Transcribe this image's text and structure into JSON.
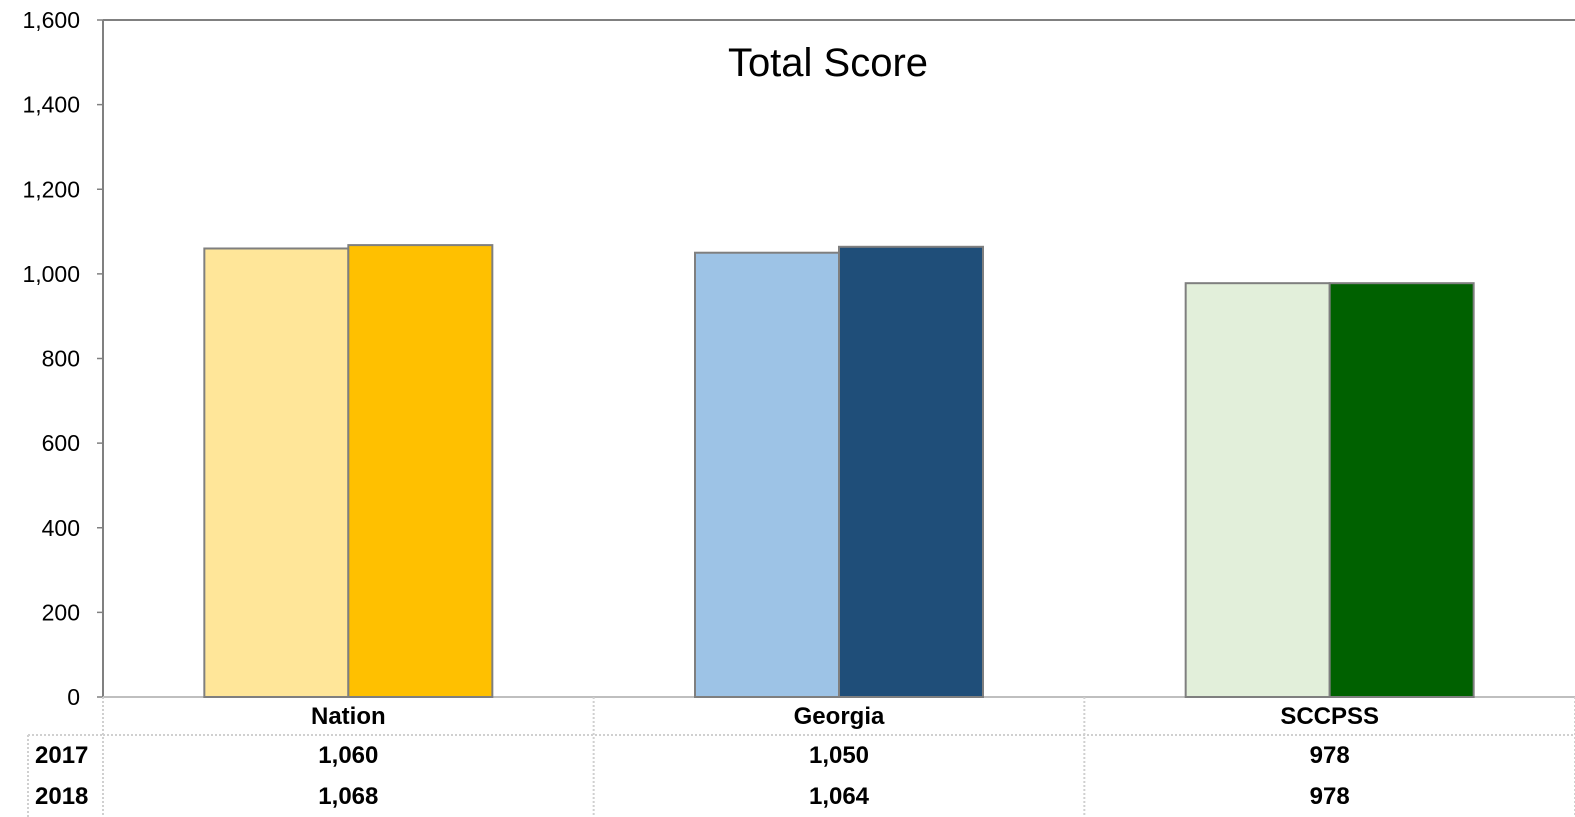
{
  "chart_data": {
    "type": "bar",
    "title": "Total Score",
    "categories": [
      "Nation",
      "Georgia",
      "SCCPSS"
    ],
    "series": [
      {
        "name": "2017",
        "values": [
          1060,
          1050,
          978
        ],
        "labels": [
          "1,060",
          "1,050",
          "978"
        ],
        "colors": [
          "#FFE699",
          "#9DC3E6",
          "#E2EFDA"
        ]
      },
      {
        "name": "2018",
        "values": [
          1068,
          1064,
          978
        ],
        "labels": [
          "1,068",
          "1,064",
          "978"
        ],
        "colors": [
          "#FFC000",
          "#1F4E79",
          "#006100"
        ]
      }
    ],
    "ylim": [
      0,
      1600
    ],
    "yticks": [
      0,
      200,
      400,
      600,
      800,
      1000,
      1200,
      1400,
      1600
    ],
    "ytick_labels": [
      "0",
      "200",
      "400",
      "600",
      "800",
      "1,000",
      "1,200",
      "1,400",
      "1,600"
    ],
    "grid": false,
    "legend": "data-table-below",
    "xlabel": "",
    "ylabel": ""
  }
}
